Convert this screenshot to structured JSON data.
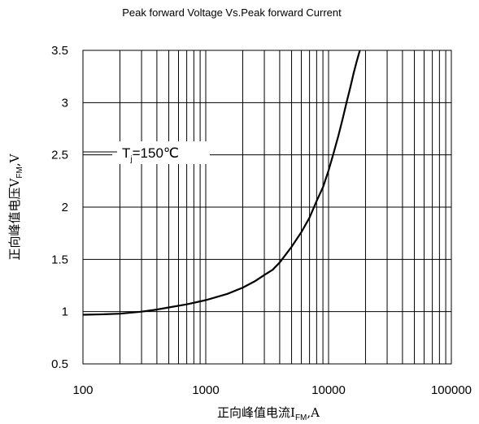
{
  "chart_data": {
    "type": "line",
    "title": "Peak forward Voltage Vs.Peak forward Current",
    "xscale": "log",
    "xlim": [
      100,
      100000
    ],
    "ylim": [
      0.5,
      3.5
    ],
    "xticks": [
      "100",
      "1000",
      "10000",
      "100000"
    ],
    "yticks": [
      "0.5",
      "1",
      "1.5",
      "2",
      "2.5",
      "3",
      "3.5"
    ],
    "xlabel": {
      "main": "正向峰值电流I",
      "sub": "FM",
      "tail": ",A"
    },
    "ylabel": {
      "main": "正向峰值电压V",
      "sub": "FM",
      "tail": ",V"
    },
    "annotation": {
      "main": "T",
      "sub": "j",
      "tail": "=150℃",
      "position": "upper-left"
    },
    "grid": true,
    "legend": "none",
    "series": [
      {
        "color": "#000000",
        "x": [
          100,
          150,
          200,
          300,
          400,
          500,
          700,
          1000,
          1500,
          2000,
          2500,
          3000,
          3500,
          4000,
          5000,
          6000,
          7000,
          8000,
          9000,
          10000,
          11000,
          12000,
          13000,
          14000,
          15000,
          16000,
          17000,
          18000
        ],
        "y": [
          0.97,
          0.975,
          0.98,
          1.0,
          1.02,
          1.04,
          1.07,
          1.11,
          1.17,
          1.23,
          1.29,
          1.35,
          1.4,
          1.47,
          1.62,
          1.76,
          1.9,
          2.06,
          2.19,
          2.35,
          2.52,
          2.68,
          2.84,
          3.0,
          3.14,
          3.28,
          3.4,
          3.5
        ]
      }
    ]
  }
}
